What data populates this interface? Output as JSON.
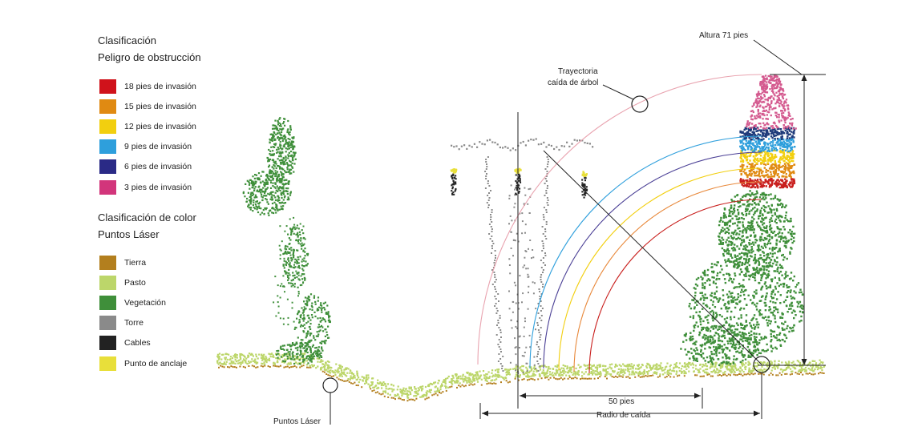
{
  "obstruction_legend": {
    "title_line1": "Clasificación",
    "title_line2": "Peligro de obstrucción",
    "items": [
      {
        "label": "18 pies de invasión",
        "color": "#d0121b"
      },
      {
        "label": "15 pies de invasión",
        "color": "#e08a12"
      },
      {
        "label": "12 pies de invasión",
        "color": "#f2cf0f"
      },
      {
        "label": "9 pies de invasión",
        "color": "#2e9fdc"
      },
      {
        "label": "6 pies de invasión",
        "color": "#2a2a86"
      },
      {
        "label": "3 pies de invasión",
        "color": "#d2357b"
      }
    ]
  },
  "laser_legend": {
    "title_line1": "Clasificación de color",
    "title_line2": "Puntos Láser",
    "items": [
      {
        "label": "Tierra",
        "color": "#b37f1e"
      },
      {
        "label": "Pasto",
        "color": "#bcd66a"
      },
      {
        "label": "Vegetación",
        "color": "#3f8f3a"
      },
      {
        "label": "Torre",
        "color": "#8a8a8a"
      },
      {
        "label": "Cables",
        "color": "#222222"
      },
      {
        "label": "Punto de anclaje",
        "color": "#e8df3a"
      }
    ]
  },
  "annotations": {
    "tree_height": "Altura 71 pies",
    "fall_path_line1": "Trayectoria",
    "fall_path_line2": "caída de árbol",
    "distance_50": "50 pies",
    "fall_radius": "Radio de caída",
    "laser_points": "Puntos Láser"
  },
  "colors": {
    "fall_arc": "#e9a4b0",
    "ground": "#b37f1e",
    "grass": "#bcd66a",
    "vegetation": "#3f8f3a",
    "tower": "#8a8a8a",
    "cables": "#222222",
    "anchor": "#e8df3a",
    "tree_top": "#d45a8f",
    "band_dark": "#1e3a7a",
    "band_blue": "#2e9fdc",
    "band_yellow": "#f2cf0f",
    "band_orange": "#e08a12",
    "band_red": "#c9201e",
    "arc_blue": "#2e9fdc",
    "arc_purple": "#4a3f95",
    "arc_yellow": "#f2cf0f",
    "arc_orange": "#e8883a",
    "arc_red": "#c9201e"
  }
}
